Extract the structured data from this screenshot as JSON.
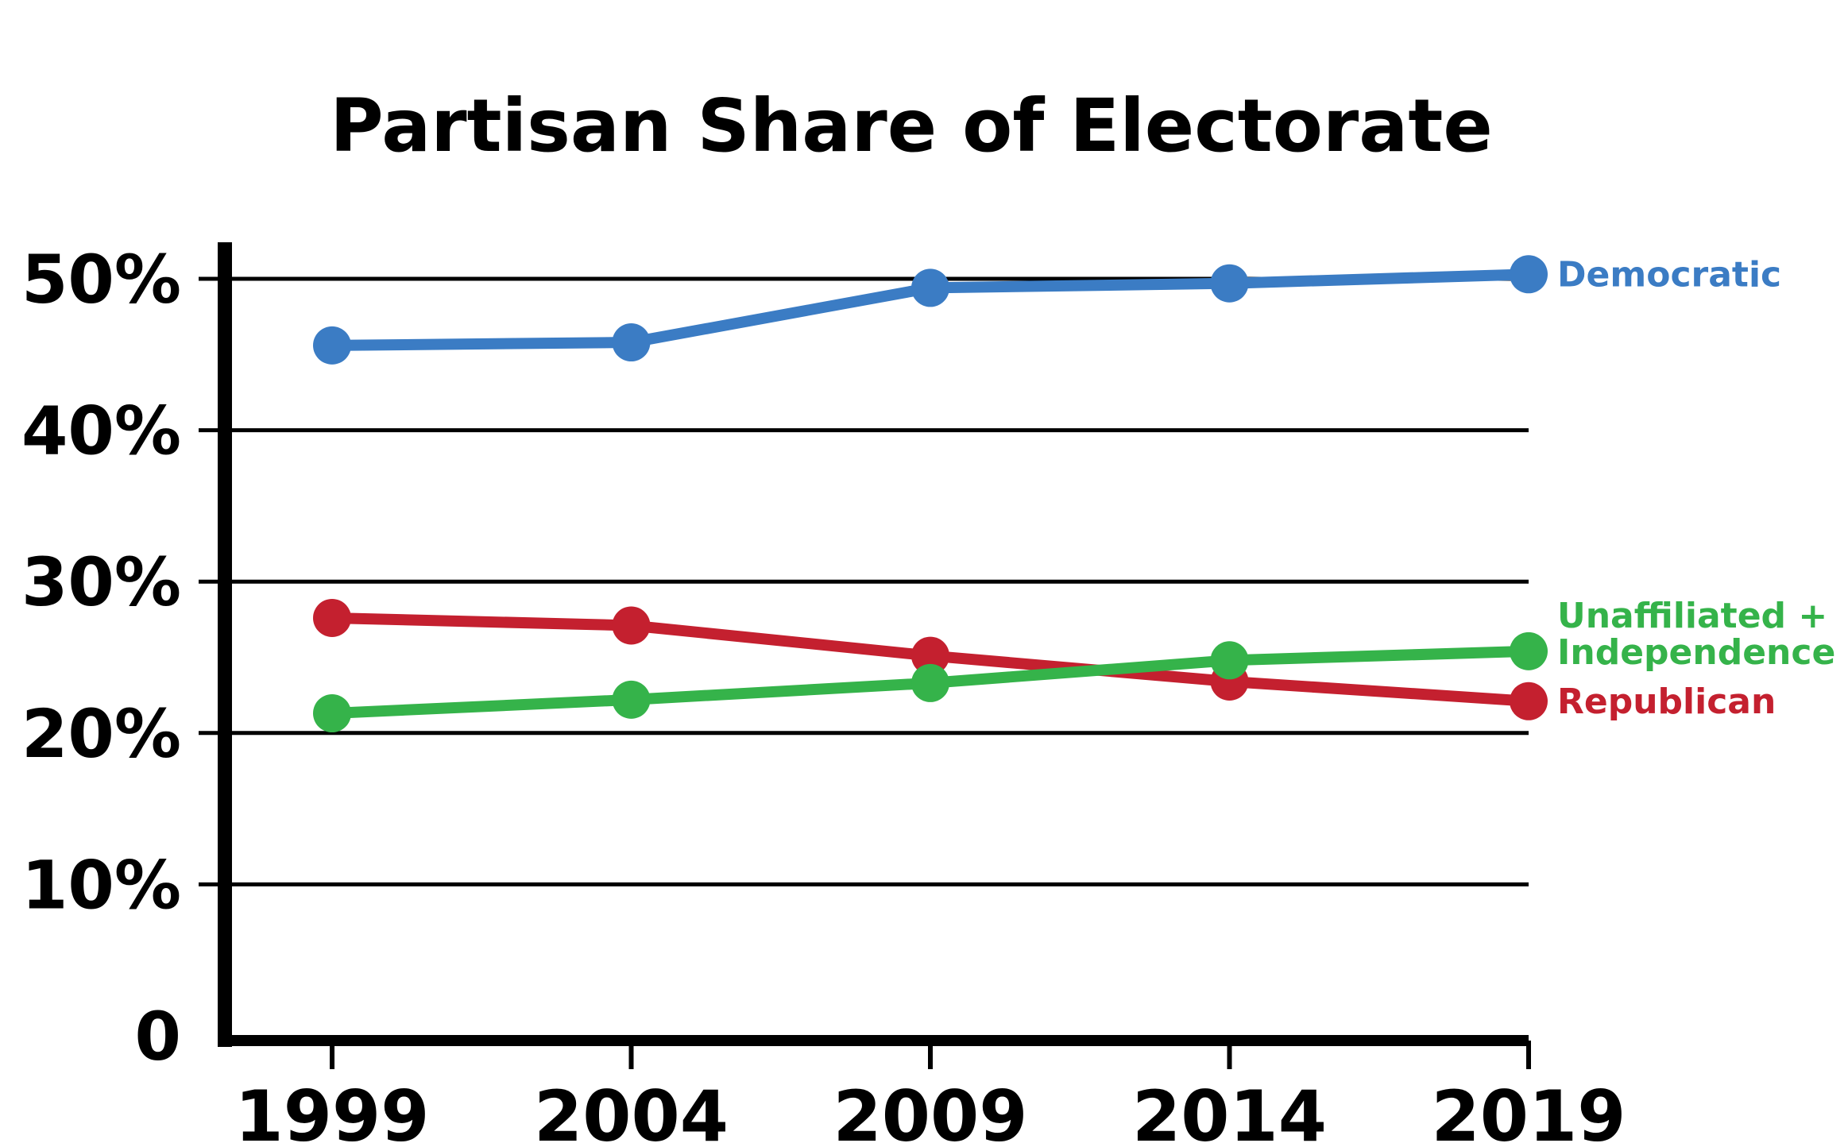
{
  "chart_data": {
    "type": "line",
    "title": "Partisan Share of Electorate",
    "xlabel": "",
    "ylabel": "",
    "x": [
      "1999",
      "2004",
      "2009",
      "2014",
      "2019"
    ],
    "ylim": [
      0,
      50
    ],
    "y_ticks": [
      "0",
      "10%",
      "20%",
      "30%",
      "40%",
      "50%"
    ],
    "grid": true,
    "legend": "inline-right",
    "series": [
      {
        "name": "Democratic",
        "color": "#3b7cc4",
        "values": [
          45.6,
          45.8,
          49.4,
          49.7,
          50.3
        ]
      },
      {
        "name": "Republican",
        "color": "#c4202f",
        "values": [
          27.6,
          27.1,
          25.1,
          23.4,
          22.1
        ]
      },
      {
        "name": "Unaffiliated + Independence",
        "label_lines": [
          "Unaffiliated +",
          "Independence"
        ],
        "color": "#35b34a",
        "values": [
          21.3,
          22.2,
          23.3,
          24.8,
          25.4
        ]
      }
    ]
  }
}
